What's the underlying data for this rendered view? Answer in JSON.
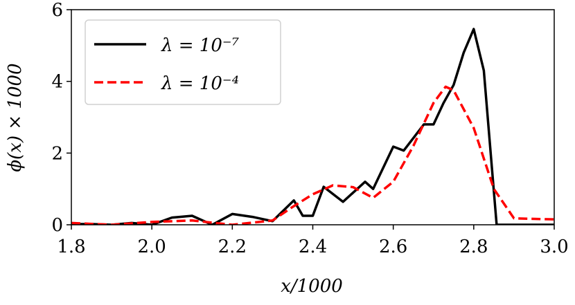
{
  "chart_data": {
    "type": "line",
    "xlabel": "x/1000",
    "ylabel": "ϕ(x) × 1000",
    "xlim": [
      1.8,
      3.0
    ],
    "ylim": [
      0,
      6
    ],
    "xticks": [
      1.8,
      {
        "value": 2,
        "label": "2.0"
      },
      2.2,
      2.4,
      2.6,
      2.8,
      {
        "value": 3,
        "label": "3.0"
      }
    ],
    "yticks": [
      0,
      2,
      4,
      6
    ],
    "legend": "upper-left",
    "series": [
      {
        "name": "λ = 10⁻⁷",
        "color": "#000000",
        "dash": "solid",
        "x": [
          1.8,
          1.85,
          1.9,
          1.95,
          2.0,
          2.05,
          2.1,
          2.15,
          2.2,
          2.25,
          2.3,
          2.353,
          2.375,
          2.4,
          2.427,
          2.475,
          2.53,
          2.55,
          2.6,
          2.626,
          2.676,
          2.7,
          2.725,
          2.75,
          2.775,
          2.8,
          2.825,
          2.845,
          2.857,
          3.0
        ],
        "values": [
          0.02,
          0.02,
          0.0,
          0.05,
          0.0,
          0.2,
          0.25,
          0.0,
          0.3,
          0.22,
          0.1,
          0.68,
          0.25,
          0.25,
          1.06,
          0.64,
          1.2,
          1.0,
          2.18,
          2.07,
          2.8,
          2.8,
          3.4,
          3.9,
          4.8,
          5.46,
          4.3,
          1.6,
          0.0,
          0.0
        ]
      },
      {
        "name": "λ = 10⁻⁴",
        "color": "#ff0000",
        "dash": "dashed",
        "x": [
          1.8,
          1.9,
          2.0,
          2.1,
          2.2,
          2.3,
          2.35,
          2.4,
          2.45,
          2.5,
          2.55,
          2.6,
          2.65,
          2.7,
          2.73,
          2.75,
          2.8,
          2.85,
          2.9,
          3.0
        ],
        "values": [
          0.05,
          0.0,
          0.08,
          0.12,
          0.0,
          0.12,
          0.5,
          0.85,
          1.1,
          1.05,
          0.75,
          1.2,
          2.2,
          3.4,
          3.85,
          3.75,
          2.7,
          1.0,
          0.18,
          0.15
        ]
      }
    ]
  }
}
